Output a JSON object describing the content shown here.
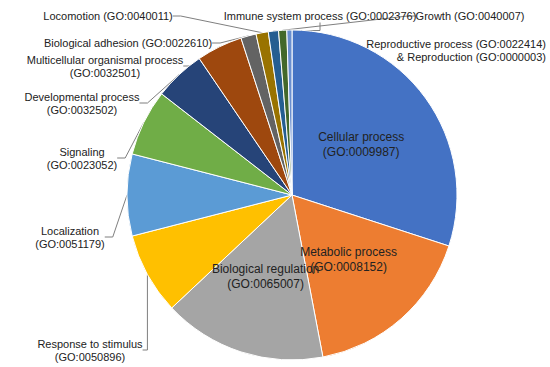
{
  "chart_data": {
    "type": "pie",
    "categories": [
      "Cellular process (GO:0009987)",
      "Metabolic process (GO:0008152)",
      "Biological regulation (GO:0065007)",
      "Response to stimulus (GO:0050896)",
      "Localization (GO:0051179)",
      "Signaling (GO:0023052)",
      "Developmental process (GO:0032502)",
      "Multicellular organismal process (GO:0032501)",
      "Biological adhesion (GO:0022610)",
      "Locomotion (GO:0040011)",
      "Immune system process (GO:0002376)",
      "Growth (GO:0040007)",
      "Reproductive process (GO:0022414) & Reproduction (GO:0000003)"
    ],
    "values": [
      30,
      17,
      16,
      8,
      8,
      6.5,
      5,
      4.5,
      1.5,
      1.2,
      1,
      0.8,
      0.5
    ],
    "colors": [
      "#4472c4",
      "#ed7d31",
      "#a5a5a5",
      "#ffc000",
      "#5b9bd5",
      "#70ad47",
      "#264478",
      "#9e480e",
      "#636363",
      "#997300",
      "#255e91",
      "#43682b",
      "#698ed0"
    ],
    "legend": false,
    "data_labels": false
  }
}
